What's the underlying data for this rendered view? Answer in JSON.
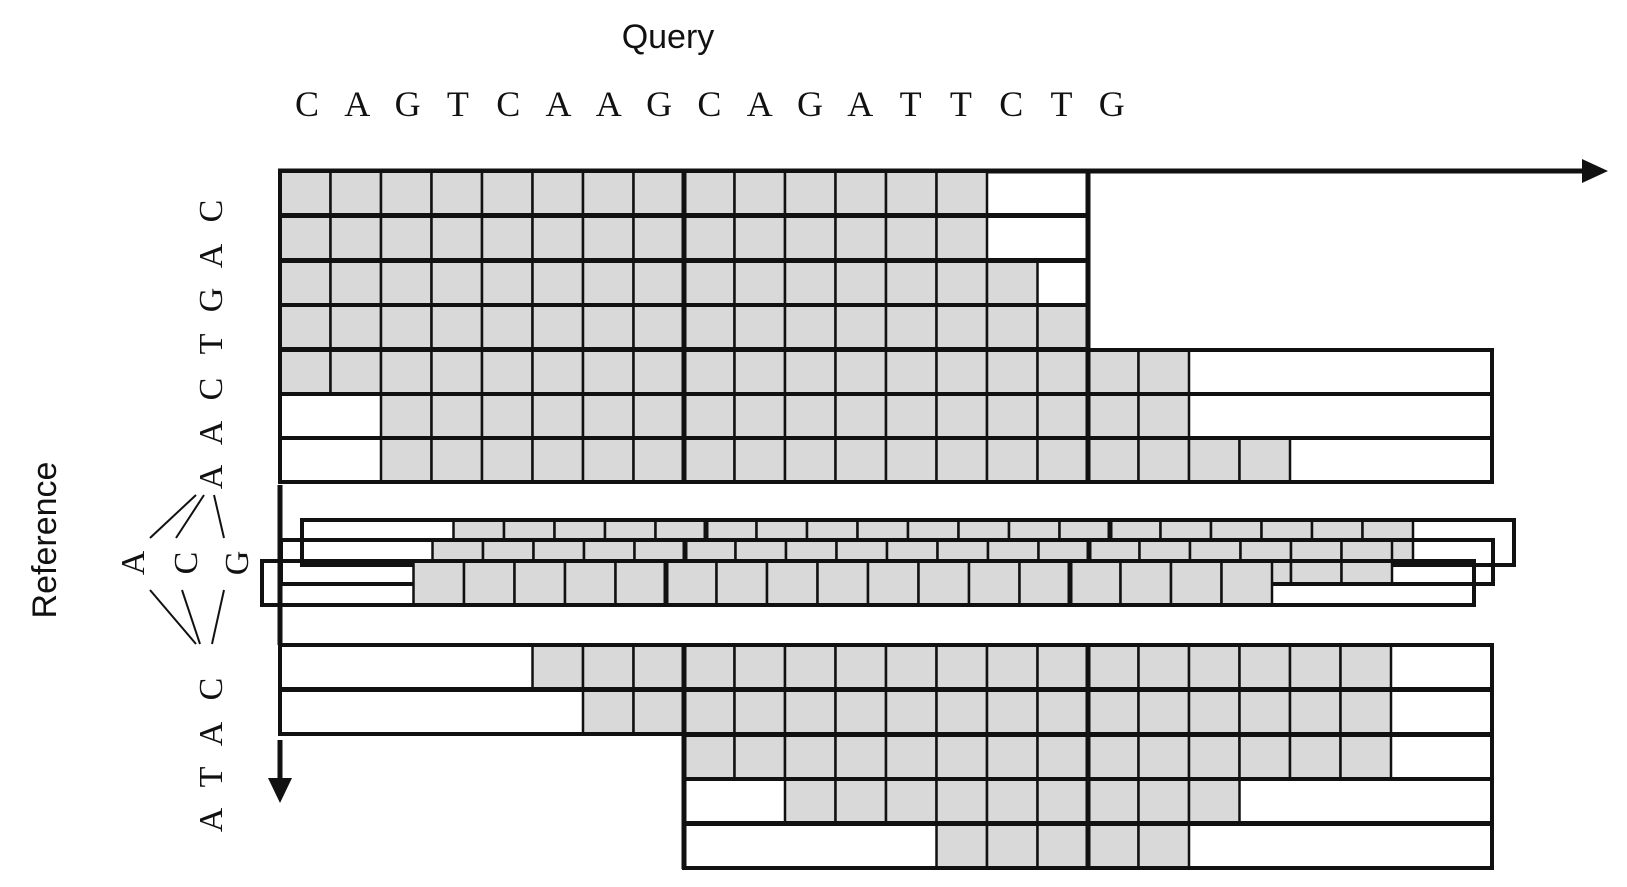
{
  "query_title": "Query",
  "reference_title": "Reference",
  "query_sequence": [
    "C",
    "A",
    "G",
    "T",
    "C",
    "A",
    "A",
    "G",
    "C",
    "A",
    "G",
    "A",
    "T",
    "T",
    "C",
    "T",
    "G"
  ],
  "reference_upper": [
    "C",
    "A",
    "G",
    "T",
    "C",
    "A",
    "A"
  ],
  "reference_branch": [
    "A",
    "C",
    "G"
  ],
  "reference_lower": [
    "C",
    "A",
    "T",
    "A"
  ],
  "colors": {
    "cell_fill": "#d9d9d9",
    "stroke": "#111111",
    "background": "#ffffff"
  },
  "upper_rows": [
    {
      "first": 0,
      "last": 13
    },
    {
      "first": 0,
      "last": 13
    },
    {
      "first": 0,
      "last": 14
    },
    {
      "first": 0,
      "last": 15
    },
    {
      "first": 0,
      "last": 17
    },
    {
      "first": 2,
      "last": 17
    },
    {
      "first": 2,
      "last": 19
    }
  ],
  "branch_rows": [
    {
      "first": 3,
      "last": 21
    },
    {
      "first": 3,
      "last": 21
    },
    {
      "first": 3,
      "last": 19
    }
  ],
  "lower_rows": [
    {
      "first": 5,
      "last": 21
    },
    {
      "first": 6,
      "last": 21
    },
    {
      "first": 8,
      "last": 21
    },
    {
      "first": 10,
      "last": 18
    },
    {
      "first": 13,
      "last": 17
    }
  ]
}
